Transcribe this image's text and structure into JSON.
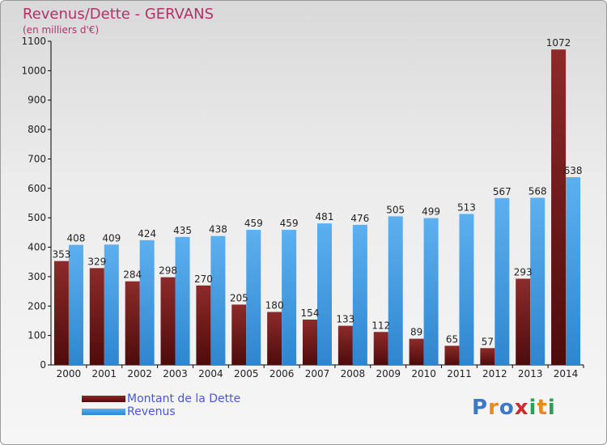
{
  "title": "Revenus/Dette - GERVANS",
  "subtitle": "(en milliers d'€)",
  "logo": {
    "letters": [
      "P",
      "r",
      "o",
      "x",
      "i",
      "t",
      "i"
    ],
    "colors": [
      "#3a78c8",
      "#e88a1a",
      "#3a78c8",
      "#d02a2a",
      "#2aa05a",
      "#e88a1a",
      "#2aa05a"
    ]
  },
  "chart_data": {
    "type": "bar",
    "categories": [
      "2000",
      "2001",
      "2002",
      "2003",
      "2004",
      "2005",
      "2006",
      "2007",
      "2008",
      "2009",
      "2010",
      "2011",
      "2012",
      "2013",
      "2014"
    ],
    "series": [
      {
        "name": "Montant de la Dette",
        "color": "#7a1d1d",
        "values": [
          353,
          329,
          284,
          298,
          270,
          205,
          180,
          154,
          133,
          112,
          89,
          65,
          57,
          293,
          1072
        ]
      },
      {
        "name": "Revenus",
        "color": "#4aa3e8",
        "values": [
          408,
          409,
          424,
          435,
          438,
          459,
          459,
          481,
          476,
          505,
          499,
          513,
          567,
          568,
          638
        ]
      }
    ],
    "ylim": [
      0,
      1100
    ],
    "yticks": [
      0,
      100,
      200,
      300,
      400,
      500,
      600,
      700,
      800,
      900,
      1000,
      1100
    ],
    "legend_position": "bottom-left",
    "grid": false
  }
}
